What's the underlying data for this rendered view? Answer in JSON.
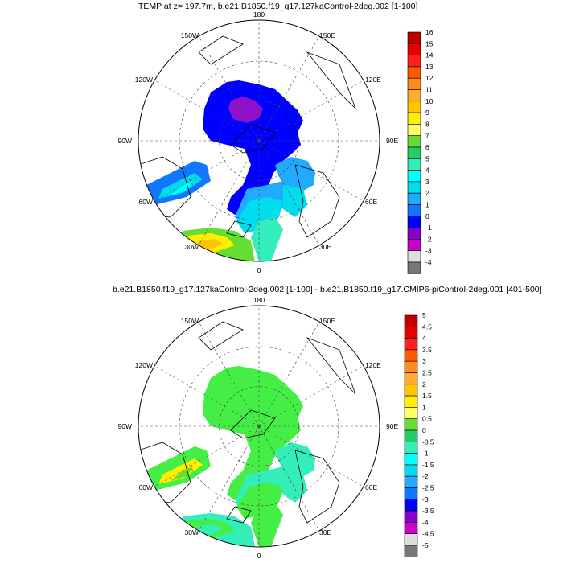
{
  "panels": [
    {
      "title": "TEMP at z= 197.7m, b.e21.B1850.f19_g17.127kaControl-2deg.002 [1-100]",
      "lon_labels": {
        "top": "180",
        "tl": "150W",
        "tr": "150E",
        "l1": "120W",
        "r1": "120E",
        "l2": "90W",
        "r2": "90E",
        "l3": "60W",
        "r3": "60E",
        "bl": "30W",
        "br": "30E",
        "bottom": "0"
      },
      "colorbar": {
        "labels": [
          "16",
          "15",
          "14",
          "13",
          "12",
          "11",
          "10",
          "9",
          "8",
          "7",
          "6",
          "5",
          "4",
          "3",
          "2",
          "1",
          "0",
          "-1",
          "-2",
          "-3",
          "-4"
        ],
        "colors": [
          "#c00000",
          "#e60000",
          "#ff2020",
          "#ff5a00",
          "#ff8c1a",
          "#ffaa33",
          "#ffc400",
          "#ffee00",
          "#ffff60",
          "#66dd33",
          "#22cc66",
          "#33eebb",
          "#00ffff",
          "#00ddee",
          "#22aaff",
          "#1177ff",
          "#0000ff",
          "#8800cc",
          "#cc00cc",
          "#dddddd",
          "#777777"
        ]
      },
      "fields": {
        "main": "#0000ff",
        "deep": "#9010cc",
        "atl_cold": "#22aaff",
        "atl_mid": "#00ddee",
        "atl_warm": "#33eebb",
        "gin_a": "#66dd33",
        "gin_b": "#ffee00",
        "gin_c": "#ffc400",
        "lab_a": "#1177ff",
        "lab_b": "#00ddee",
        "lab_c": "#00ffff",
        "east": "#22aaff",
        "east2": "#00ddee"
      }
    },
    {
      "title": "b.e21.B1850.f19_g17.127kaControl-2deg.002 [1-100] - b.e21.B1850.f19_g17.CMIP6-piControl-2deg.001 [401-500]",
      "lon_labels": {
        "top": "180",
        "tl": "150W",
        "tr": "150E",
        "l1": "120W",
        "r1": "120E",
        "l2": "90W",
        "r2": "90E",
        "l3": "60W",
        "r3": "60E",
        "bl": "30W",
        "br": "30E",
        "bottom": "0"
      },
      "colorbar": {
        "labels": [
          "5",
          "4.5",
          "4",
          "3.5",
          "3",
          "2.5",
          "2",
          "1.5",
          "1",
          "0.5",
          "0",
          "-0.5",
          "-1",
          "-1.5",
          "-2",
          "-2.5",
          "-3",
          "-3.5",
          "-4",
          "-4.5",
          "-5"
        ],
        "colors": [
          "#c00000",
          "#e60000",
          "#ff2020",
          "#ff5a00",
          "#ff8c1a",
          "#ffaa33",
          "#ffc400",
          "#ffee00",
          "#ffff60",
          "#66dd33",
          "#22cc66",
          "#33eebb",
          "#00ffff",
          "#00ddee",
          "#22aaff",
          "#1177ff",
          "#0000ff",
          "#8800cc",
          "#cc00cc",
          "#dddddd",
          "#777777"
        ]
      },
      "fields": {
        "main": "#44ee44",
        "deep": "#44ee44",
        "atl_cold": "#33eebb",
        "atl_mid": "#44ee44",
        "atl_warm": "#44ee44",
        "gin_a": "#33eebb",
        "gin_b": "#44ee44",
        "gin_c": "#33eebb",
        "lab_a": "#44ee44",
        "lab_b": "#ffee00",
        "lab_c": "#66dd33",
        "east": "#33eebb",
        "east2": "#33eebb"
      }
    }
  ]
}
